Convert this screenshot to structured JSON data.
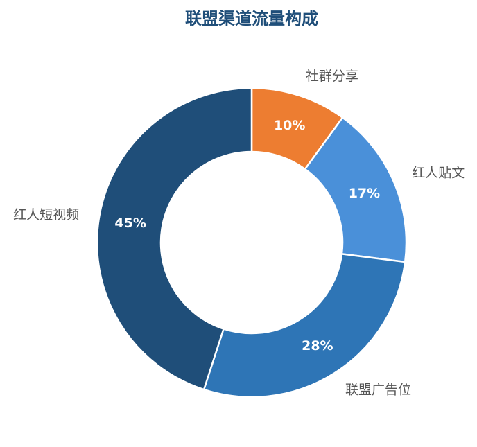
{
  "chart_data": {
    "type": "donut",
    "title": "联盟渠道流量构成",
    "categories": [
      "社群分享",
      "红人贴文",
      "联盟广告位",
      "红人短视频"
    ],
    "values": [
      10,
      17,
      28,
      45
    ],
    "value_labels": [
      "10%",
      "17%",
      "28%",
      "45%"
    ],
    "colors": [
      "#ed7d31",
      "#4a90d9",
      "#2e75b6",
      "#1f4e79"
    ]
  }
}
